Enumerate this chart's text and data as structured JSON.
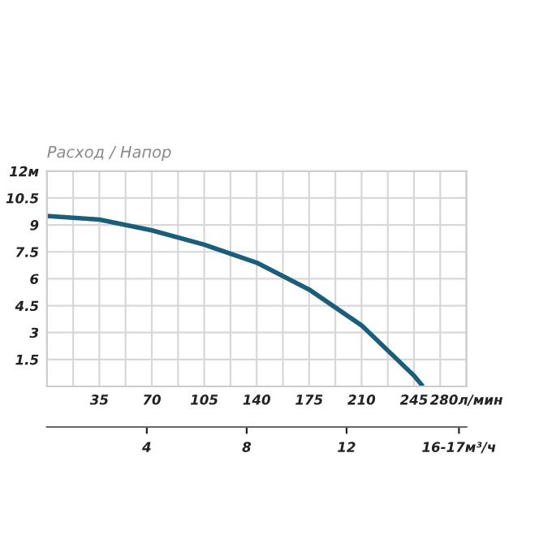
{
  "chart_data": {
    "type": "line",
    "title": "Расход / Напор",
    "x": [
      0,
      17.5,
      35,
      70,
      105,
      140,
      175,
      210,
      245,
      250
    ],
    "series": [
      {
        "color": "#1b5e7b",
        "values": [
          9.5,
          9.4,
          9.3,
          8.7,
          7.9,
          6.9,
          5.4,
          3.4,
          0.6,
          0.1
        ]
      }
    ],
    "xlim": [
      0,
      280
    ],
    "ylim": [
      0,
      12
    ],
    "xticks": [
      {
        "value": 17.5,
        "label": null
      },
      35,
      {
        "value": 52.5,
        "label": null
      },
      70,
      {
        "value": 87.5,
        "label": null
      },
      105,
      {
        "value": 122.5,
        "label": null
      },
      140,
      {
        "value": 157.5,
        "label": null
      },
      175,
      {
        "value": 192.5,
        "label": null
      },
      210,
      {
        "value": 227.5,
        "label": null
      },
      245,
      {
        "value": 262.5,
        "label": null
      },
      {
        "value": 280,
        "label": "280л/мин"
      }
    ],
    "yticks": [
      1.5,
      3,
      4.5,
      6,
      7.5,
      9,
      10.5,
      {
        "value": 12,
        "label": "12м"
      }
    ],
    "x2lim": [
      0,
      16.8
    ],
    "x2ticks": [
      4,
      8,
      12,
      {
        "value": 16.5,
        "label": "16-17м³/ч"
      }
    ],
    "grid": true,
    "marker": "none",
    "line_style": "solid",
    "legend": false
  }
}
